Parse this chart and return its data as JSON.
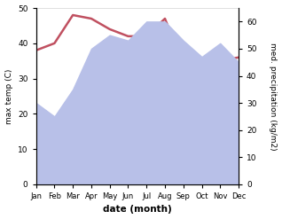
{
  "months": [
    "Jan",
    "Feb",
    "Mar",
    "Apr",
    "May",
    "Jun",
    "Jul",
    "Aug",
    "Sep",
    "Oct",
    "Nov",
    "Dec"
  ],
  "temp": [
    38,
    40,
    48,
    47,
    44,
    42,
    42,
    47,
    34,
    34,
    35,
    36
  ],
  "precip": [
    30,
    25,
    35,
    50,
    55,
    53,
    60,
    60,
    53,
    47,
    52,
    45
  ],
  "temp_color": "#c05060",
  "precip_color": "#b8c0e8",
  "ylim_left": [
    0,
    50
  ],
  "ylim_right": [
    0,
    65
  ],
  "xlabel": "date (month)",
  "ylabel_left": "max temp (C)",
  "ylabel_right": "med. precipitation (kg/m2)",
  "bg_color": "#ffffff",
  "temp_lw": 1.8,
  "yticks_left": [
    0,
    10,
    20,
    30,
    40,
    50
  ],
  "yticks_right": [
    0,
    10,
    20,
    30,
    40,
    50,
    60
  ]
}
